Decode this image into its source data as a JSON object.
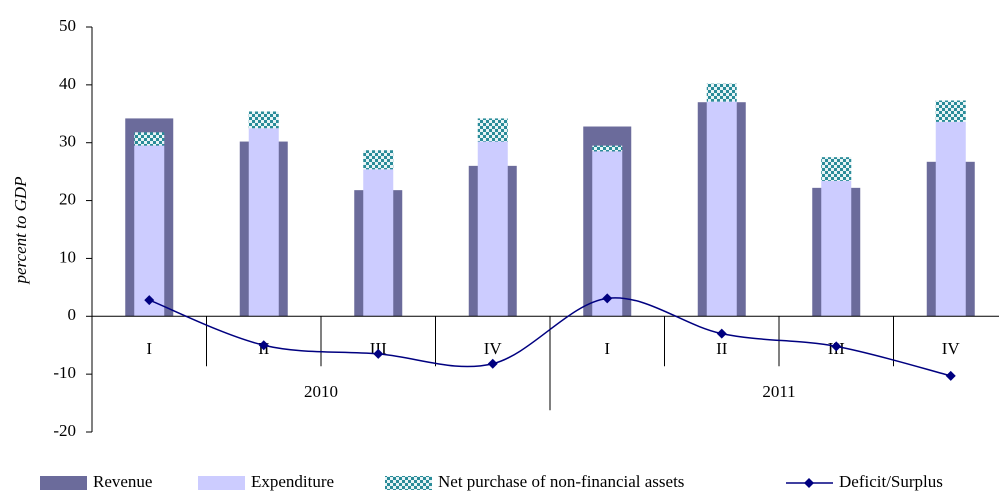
{
  "chart_data": {
    "type": "bar",
    "y_label": "percent to GDP",
    "categories": [
      "I",
      "II",
      "III",
      "IV",
      "I",
      "II",
      "III",
      "IV"
    ],
    "groups": [
      "2010",
      "2011"
    ],
    "ylim": [
      -20,
      50
    ],
    "yticks": [
      -20,
      -10,
      0,
      10,
      20,
      30,
      40,
      50
    ],
    "series": [
      {
        "name": "Revenue",
        "color": "#6b6b9b",
        "values": [
          34.2,
          30.2,
          21.8,
          26.0,
          32.8,
          37.0,
          22.2,
          26.7
        ]
      },
      {
        "name": "Expenditure",
        "color": "#ccccff",
        "values": [
          29.5,
          32.5,
          25.4,
          30.2,
          28.5,
          37.1,
          23.4,
          33.6
        ]
      },
      {
        "name": "Net purchase of non-financial assets",
        "color": "#2a8c99",
        "stack_on": "Expenditure",
        "values": [
          2.3,
          2.9,
          3.3,
          4.0,
          1.0,
          3.1,
          4.1,
          3.7
        ]
      },
      {
        "name": "Deficit/Surplus",
        "color": "#000080",
        "type": "line",
        "values": [
          2.8,
          -5.0,
          -6.5,
          -8.2,
          3.1,
          -3.0,
          -5.2,
          -10.3
        ]
      }
    ]
  }
}
